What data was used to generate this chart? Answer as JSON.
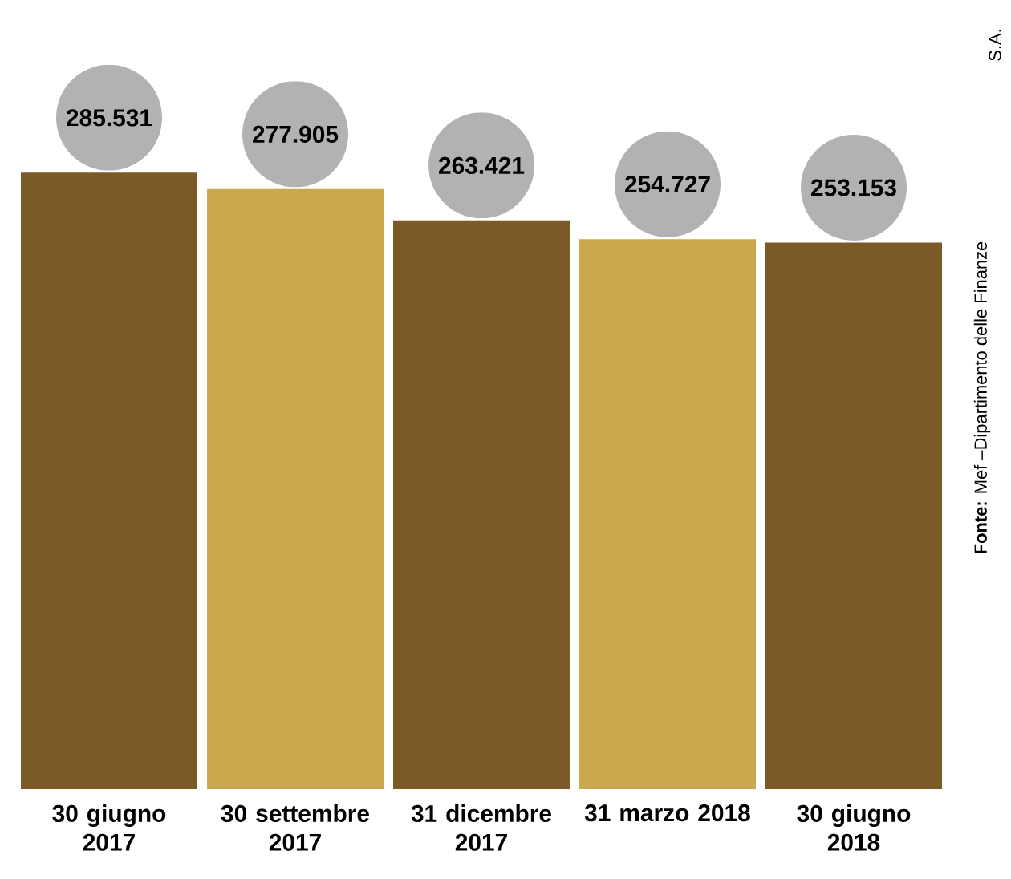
{
  "chart_data": {
    "type": "bar",
    "categories": [
      "30 giugno 2017",
      "30 settembre 2017",
      "31 dicembre 2017",
      "31 marzo 2018",
      "30 giugno 2018"
    ],
    "values": [
      285531,
      277905,
      263421,
      254727,
      253153
    ],
    "value_labels": [
      "285.531",
      "277.905",
      "263.421",
      "254.727",
      "253.153"
    ],
    "colors": [
      "#7b5a28",
      "#c9a94c",
      "#7b5a28",
      "#c9a94c",
      "#7b5a28"
    ],
    "annotations": [
      "**Fonte:** Mef –Dipartimento delle Finanze",
      "S.A."
    ]
  }
}
